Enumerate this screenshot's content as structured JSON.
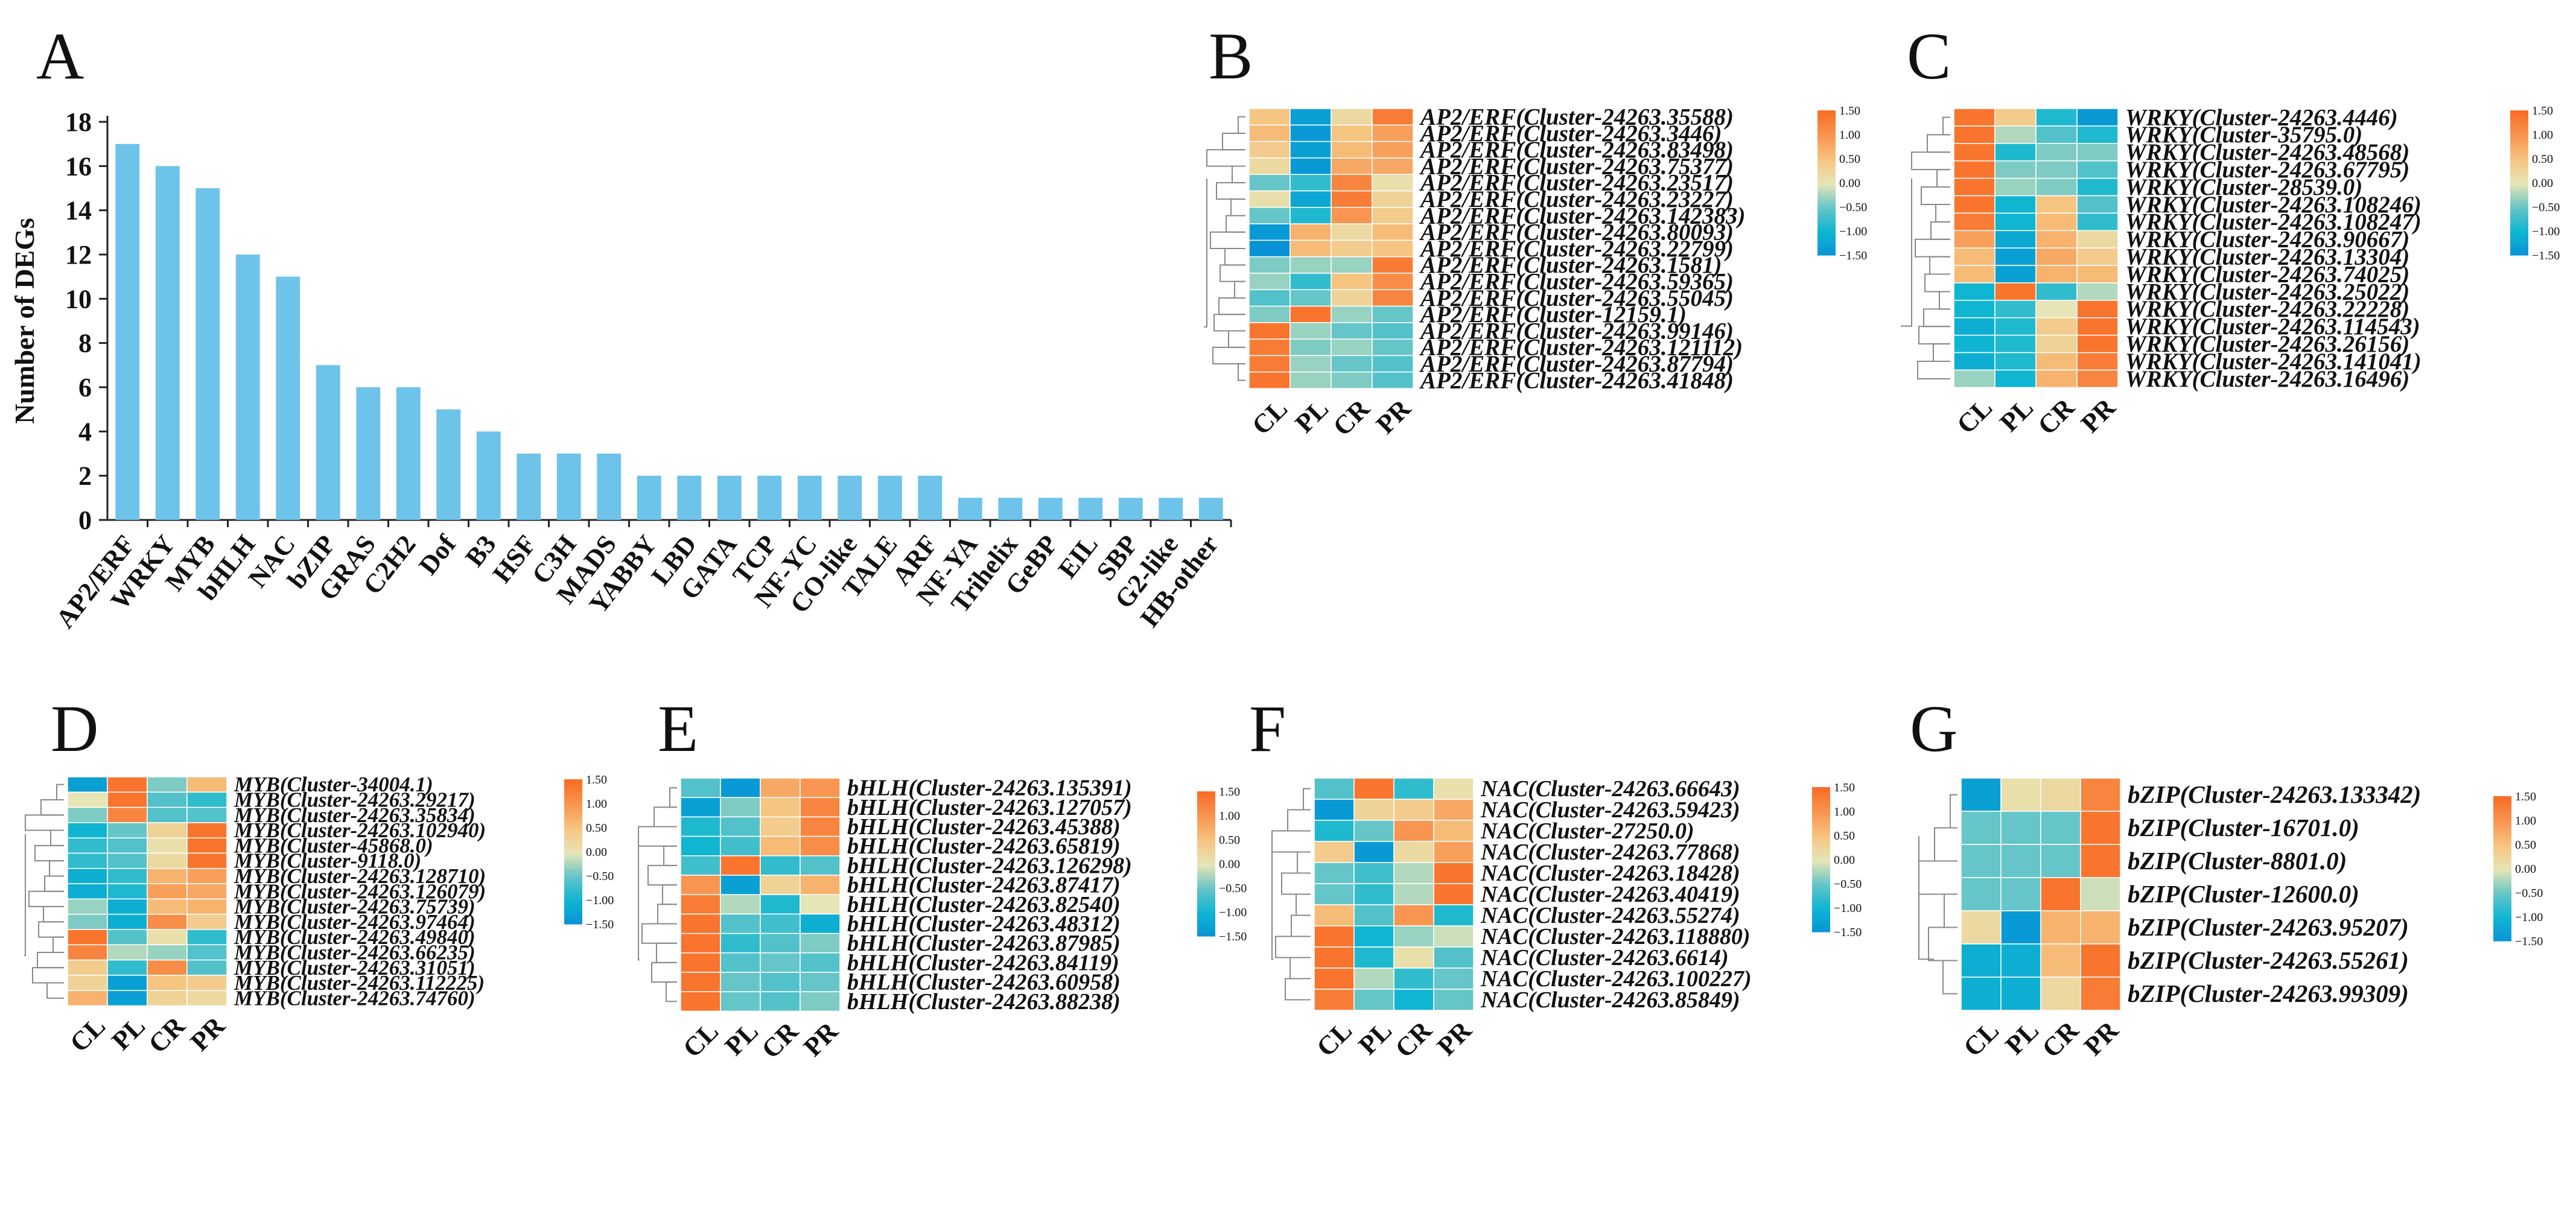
{
  "chart_data": [
    {
      "panel": "A",
      "type": "bar",
      "title": "",
      "xlabel": "",
      "ylabel": "Number of DEGs",
      "ylim": [
        0,
        18
      ],
      "yticks": [
        0,
        2,
        4,
        6,
        8,
        10,
        12,
        14,
        16,
        18
      ],
      "bar_color": "#6ec3ea",
      "categories": [
        "AP2/ERF",
        "WRKY",
        "MYB",
        "bHLH",
        "NAC",
        "bZIP",
        "GRAS",
        "C2H2",
        "Dof",
        "B3",
        "HSF",
        "C3H",
        "MADS",
        "YABBY",
        "LBD",
        "GATA",
        "TCP",
        "NF-YC",
        "CO-like",
        "TALE",
        "ARF",
        "NF-YA",
        "Trihelix",
        "GeBP",
        "EIL",
        "SBP",
        "G2-like",
        "HB-other"
      ],
      "values": [
        17,
        16,
        15,
        12,
        11,
        7,
        6,
        6,
        5,
        4,
        3,
        3,
        3,
        2,
        2,
        2,
        2,
        2,
        2,
        2,
        2,
        1,
        1,
        1,
        1,
        1,
        1,
        1
      ]
    },
    {
      "panel": "B",
      "type": "heatmap",
      "columns": [
        "CL",
        "PL",
        "CR",
        "PR"
      ],
      "colorbar": {
        "ticks": [
          "1.50",
          "1.00",
          "0.50",
          "0.00",
          "−0.50",
          "−1.00",
          "−1.50"
        ],
        "min": -1.5,
        "max": 1.5
      },
      "rows": [
        "AP2/ERF(Cluster-24263.35588)",
        "AP2/ERF(Cluster-24263.3446)",
        "AP2/ERF(Cluster-24263.83498)",
        "AP2/ERF(Cluster-24263.75377)",
        "AP2/ERF(Cluster-24263.23517)",
        "AP2/ERF(Cluster-24263.23227)",
        "AP2/ERF(Cluster-24263.142383)",
        "AP2/ERF(Cluster-24263.80093)",
        "AP2/ERF(Cluster-24263.22799)",
        "AP2/ERF(Cluster-24263.1581)",
        "AP2/ERF(Cluster-24263.59365)",
        "AP2/ERF(Cluster-24263.55045)",
        "AP2/ERF(Cluster-12159.1)",
        "AP2/ERF(Cluster-24263.99146)",
        "AP2/ERF(Cluster-24263.121112)",
        "AP2/ERF(Cluster-24263.87794)",
        "AP2/ERF(Cluster-24263.41848)"
      ],
      "values": [
        [
          0.5,
          -1.3,
          0.2,
          1.3
        ],
        [
          0.6,
          -1.4,
          0.5,
          0.9
        ],
        [
          0.4,
          -1.3,
          0.6,
          0.9
        ],
        [
          0.2,
          -1.4,
          0.8,
          0.8
        ],
        [
          -0.5,
          -0.8,
          1.2,
          0.1
        ],
        [
          0.1,
          -1.2,
          1.3,
          0.3
        ],
        [
          -0.5,
          -0.9,
          1.0,
          0.4
        ],
        [
          -1.4,
          0.7,
          0.2,
          0.6
        ],
        [
          -1.5,
          0.6,
          0.4,
          0.5
        ],
        [
          -0.4,
          -0.3,
          -0.3,
          1.3
        ],
        [
          -0.3,
          -0.8,
          0.5,
          1.1
        ],
        [
          -0.6,
          -0.5,
          0.3,
          1.2
        ],
        [
          -0.4,
          1.4,
          -0.3,
          -0.5
        ],
        [
          1.4,
          -0.3,
          -0.5,
          -0.6
        ],
        [
          1.3,
          -0.4,
          -0.3,
          -0.5
        ],
        [
          1.3,
          -0.3,
          -0.5,
          -0.6
        ],
        [
          1.4,
          -0.3,
          -0.4,
          -0.6
        ]
      ]
    },
    {
      "panel": "C",
      "type": "heatmap",
      "columns": [
        "CL",
        "PL",
        "CR",
        "PR"
      ],
      "colorbar": {
        "ticks": [
          "1.50",
          "1.00",
          "0.50",
          "0.00",
          "−0.50",
          "−1.00",
          "−1.50"
        ],
        "min": -1.5,
        "max": 1.5
      },
      "rows": [
        "WRKY(Cluster-24263.4446)",
        "WRKY(Cluster-35795.0)",
        "WRKY(Cluster-24263.48568)",
        "WRKY(Cluster-24263.67795)",
        "WRKY(Cluster-28539.0)",
        "WRKY(Cluster-24263.108246)",
        "WRKY(Cluster-24263.108247)",
        "WRKY(Cluster-24263.90667)",
        "WRKY(Cluster-24263.13304)",
        "WRKY(Cluster-24263.74025)",
        "WRKY(Cluster-24263.25022)",
        "WRKY(Cluster-24263.22228)",
        "WRKY(Cluster-24263.114543)",
        "WRKY(Cluster-24263.26156)",
        "WRKY(Cluster-24263.141041)",
        "WRKY(Cluster-24263.16496)"
      ],
      "values": [
        [
          1.4,
          0.4,
          -0.9,
          -1.4
        ],
        [
          1.4,
          -0.2,
          -0.6,
          -0.9
        ],
        [
          1.4,
          -0.9,
          -0.4,
          -0.4
        ],
        [
          1.4,
          -0.4,
          -0.4,
          -0.6
        ],
        [
          1.4,
          -0.3,
          -0.4,
          -0.9
        ],
        [
          1.4,
          -1.0,
          0.5,
          -0.6
        ],
        [
          1.3,
          -1.0,
          0.6,
          -0.8
        ],
        [
          0.9,
          -1.2,
          0.7,
          0.2
        ],
        [
          0.6,
          -1.3,
          0.8,
          0.4
        ],
        [
          0.6,
          -1.3,
          0.7,
          0.6
        ],
        [
          -1.0,
          1.4,
          -0.8,
          -0.2
        ],
        [
          -1.0,
          -0.8,
          0.0,
          1.4
        ],
        [
          -1.1,
          -0.9,
          0.4,
          1.4
        ],
        [
          -1.0,
          -0.9,
          0.3,
          1.4
        ],
        [
          -1.1,
          -0.9,
          0.6,
          1.3
        ],
        [
          -0.3,
          -1.0,
          0.7,
          1.2
        ]
      ]
    },
    {
      "panel": "D",
      "type": "heatmap",
      "columns": [
        "CL",
        "PL",
        "CR",
        "PR"
      ],
      "colorbar": {
        "ticks": [
          "1.50",
          "1.00",
          "0.50",
          "0.00",
          "−0.50",
          "−1.00",
          "−1.50"
        ],
        "min": -1.5,
        "max": 1.5
      },
      "rows": [
        "MYB(Cluster-34004.1)",
        "MYB(Cluster-24263.29217)",
        "MYB(Cluster-24263.35834)",
        "MYB(Cluster-24263.102940)",
        "MYB(Cluster-45868.0)",
        "MYB(Cluster-9118.0)",
        "MYB(Cluster-24263.128710)",
        "MYB(Cluster-24263.126079)",
        "MYB(Cluster-24263.75739)",
        "MYB(Cluster-24263.97464)",
        "MYB(Cluster-24263.49840)",
        "MYB(Cluster-24263.66235)",
        "MYB(Cluster-24263.31051)",
        "MYB(Cluster-24263.112225)",
        "MYB(Cluster-24263.74760)"
      ],
      "values": [
        [
          -1.3,
          1.4,
          -0.4,
          0.6
        ],
        [
          0.0,
          1.4,
          -0.6,
          -0.8
        ],
        [
          -0.4,
          1.2,
          -0.6,
          -0.6
        ],
        [
          -1.0,
          -0.5,
          0.3,
          1.4
        ],
        [
          -0.8,
          -0.6,
          0.1,
          1.4
        ],
        [
          -0.8,
          -0.6,
          0.2,
          1.4
        ],
        [
          -1.1,
          -0.8,
          0.7,
          0.9
        ],
        [
          -1.1,
          -0.9,
          0.9,
          0.8
        ],
        [
          -0.3,
          -1.1,
          0.6,
          0.7
        ],
        [
          -0.4,
          -1.1,
          1.1,
          0.4
        ],
        [
          1.4,
          -0.6,
          0.1,
          -0.8
        ],
        [
          1.2,
          -0.2,
          -0.3,
          -0.6
        ],
        [
          0.4,
          -0.8,
          1.1,
          -0.6
        ],
        [
          0.3,
          -1.3,
          0.5,
          0.4
        ],
        [
          0.7,
          -1.3,
          0.3,
          0.2
        ]
      ]
    },
    {
      "panel": "E",
      "type": "heatmap",
      "columns": [
        "CL",
        "PL",
        "CR",
        "PR"
      ],
      "colorbar": {
        "ticks": [
          "1.50",
          "1.00",
          "0.50",
          "0.00",
          "−0.50",
          "−1.00",
          "−1.50"
        ],
        "min": -1.5,
        "max": 1.5
      },
      "rows": [
        "bHLH(Cluster-24263.135391)",
        "bHLH(Cluster-24263.127057)",
        "bHLH(Cluster-24263.45388)",
        "bHLH(Cluster-24263.65819)",
        "bHLH(Cluster-24263.126298)",
        "bHLH(Cluster-24263.87417)",
        "bHLH(Cluster-24263.82540)",
        "bHLH(Cluster-24263.48312)",
        "bHLH(Cluster-24263.87985)",
        "bHLH(Cluster-24263.84119)",
        "bHLH(Cluster-24263.60958)",
        "bHLH(Cluster-24263.88238)"
      ],
      "values": [
        [
          -0.6,
          -1.4,
          0.8,
          1.0
        ],
        [
          -1.3,
          -0.4,
          0.5,
          1.2
        ],
        [
          -0.9,
          -0.6,
          0.4,
          1.2
        ],
        [
          -1.0,
          -0.7,
          0.6,
          1.1
        ],
        [
          -0.7,
          1.4,
          -0.8,
          -0.6
        ],
        [
          1.0,
          -1.3,
          0.3,
          0.7
        ],
        [
          1.3,
          -0.2,
          -0.9,
          0.0
        ],
        [
          1.4,
          -0.6,
          -0.7,
          -1.1
        ],
        [
          1.4,
          -0.8,
          -0.6,
          -0.4
        ],
        [
          1.4,
          -0.6,
          -0.5,
          -0.6
        ],
        [
          1.4,
          -0.5,
          -0.6,
          -0.5
        ],
        [
          1.4,
          -0.5,
          -0.6,
          -0.4
        ]
      ]
    },
    {
      "panel": "F",
      "type": "heatmap",
      "columns": [
        "CL",
        "PL",
        "CR",
        "PR"
      ],
      "colorbar": {
        "ticks": [
          "1.50",
          "1.00",
          "0.50",
          "0.00",
          "−0.50",
          "−1.00",
          "−1.50"
        ],
        "min": -1.5,
        "max": 1.5
      },
      "rows": [
        "NAC(Cluster-24263.66643)",
        "NAC(Cluster-24263.59423)",
        "NAC(Cluster-27250.0)",
        "NAC(Cluster-24263.77868)",
        "NAC(Cluster-24263.18428)",
        "NAC(Cluster-24263.40419)",
        "NAC(Cluster-24263.55274)",
        "NAC(Cluster-24263.118880)",
        "NAC(Cluster-24263.6614)",
        "NAC(Cluster-24263.100227)",
        "NAC(Cluster-24263.85849)"
      ],
      "values": [
        [
          -0.6,
          1.4,
          -0.8,
          0.1
        ],
        [
          -1.4,
          0.3,
          0.4,
          0.8
        ],
        [
          -0.9,
          -0.5,
          1.0,
          0.6
        ],
        [
          0.4,
          -1.4,
          0.2,
          0.9
        ],
        [
          -0.5,
          -0.7,
          -0.2,
          1.4
        ],
        [
          -0.5,
          -0.8,
          -0.2,
          1.4
        ],
        [
          0.6,
          -0.6,
          1.0,
          -0.9
        ],
        [
          1.4,
          -1.0,
          -0.3,
          -0.1
        ],
        [
          1.4,
          -0.9,
          0.1,
          -0.6
        ],
        [
          1.4,
          -0.2,
          -0.8,
          -0.5
        ],
        [
          1.3,
          -0.5,
          -1.0,
          -0.5
        ]
      ]
    },
    {
      "panel": "G",
      "type": "heatmap",
      "columns": [
        "CL",
        "PL",
        "CR",
        "PR"
      ],
      "colorbar": {
        "ticks": [
          "1.50",
          "1.00",
          "0.50",
          "0.00",
          "−0.50",
          "−1.00",
          "−1.50"
        ],
        "min": -1.5,
        "max": 1.5
      },
      "rows": [
        "bZIP(Cluster-24263.133342)",
        "bZIP(Cluster-16701.0)",
        "bZIP(Cluster-8801.0)",
        "bZIP(Cluster-12600.0)",
        "bZIP(Cluster-24263.95207)",
        "bZIP(Cluster-24263.55261)",
        "bZIP(Cluster-24263.99309)"
      ],
      "values": [
        [
          -1.3,
          0.1,
          0.2,
          1.2
        ],
        [
          -0.5,
          -0.5,
          -0.5,
          1.4
        ],
        [
          -0.5,
          -0.5,
          -0.5,
          1.4
        ],
        [
          -0.5,
          -0.5,
          1.4,
          -0.1
        ],
        [
          0.2,
          -1.4,
          0.7,
          0.7
        ],
        [
          -1.1,
          -1.1,
          0.6,
          1.4
        ],
        [
          -1.1,
          -1.1,
          0.2,
          1.3
        ]
      ]
    }
  ]
}
